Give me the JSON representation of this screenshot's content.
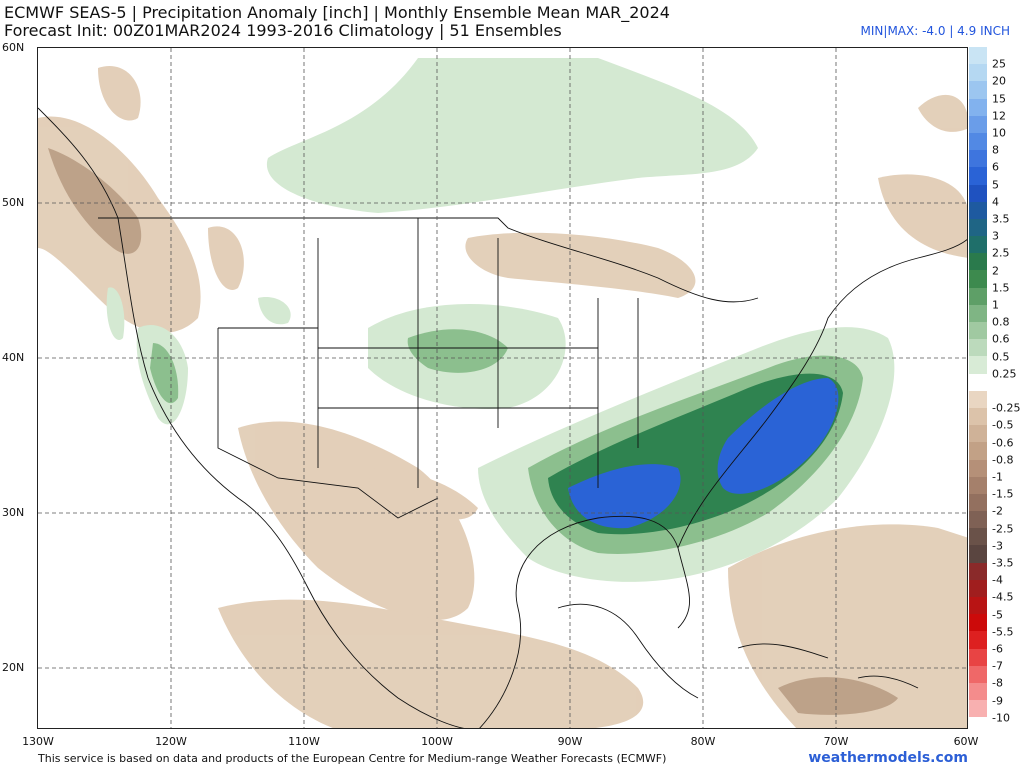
{
  "header": {
    "title_line1": "ECMWF SEAS-5 | Precipitation Anomaly [inch] | Monthly Ensemble Mean MAR_2024",
    "title_line2": "Forecast Init: 00Z01MAR2024     1993-2016 Climatology | 51 Ensembles",
    "minmax": "MIN|MAX: -4.0 | 4.9 INCH"
  },
  "axes": {
    "lat_labels": [
      "60N",
      "50N",
      "40N",
      "30N",
      "20N"
    ],
    "lon_labels": [
      "130W",
      "120W",
      "110W",
      "100W",
      "90W",
      "80W",
      "70W",
      "60W"
    ]
  },
  "colorbar": {
    "levels": [
      {
        "label": "25",
        "color": "#c9e4f4"
      },
      {
        "label": "20",
        "color": "#b5d8f2"
      },
      {
        "label": "15",
        "color": "#9cc6f0"
      },
      {
        "label": "12",
        "color": "#82b2ee"
      },
      {
        "label": "10",
        "color": "#6a9de9"
      },
      {
        "label": "8",
        "color": "#5289e4"
      },
      {
        "label": "6",
        "color": "#3e75de"
      },
      {
        "label": "5",
        "color": "#2a63d6"
      },
      {
        "label": "4",
        "color": "#1f52c0"
      },
      {
        "label": "3.5",
        "color": "#1e5aa0"
      },
      {
        "label": "3",
        "color": "#1f6585"
      },
      {
        "label": "2.5",
        "color": "#1f6f6a"
      },
      {
        "label": "2",
        "color": "#2a7a4c"
      },
      {
        "label": "1.5",
        "color": "#3d8a4e"
      },
      {
        "label": "1",
        "color": "#5e9f67"
      },
      {
        "label": "0.8",
        "color": "#7fb584"
      },
      {
        "label": "0.6",
        "color": "#a0c9a1"
      },
      {
        "label": "0.5",
        "color": "#bcdabc"
      },
      {
        "label": "0.25",
        "color": "#d8ebd6"
      },
      {
        "label": "",
        "color": "#ffffff"
      },
      {
        "label": "-0.25",
        "color": "#e9d6c2"
      },
      {
        "label": "-0.5",
        "color": "#dcc3aa"
      },
      {
        "label": "-0.6",
        "color": "#cfb298"
      },
      {
        "label": "-0.8",
        "color": "#c2a186"
      },
      {
        "label": "-1",
        "color": "#b59078"
      },
      {
        "label": "-1.5",
        "color": "#a5806b"
      },
      {
        "label": "-2",
        "color": "#93705f"
      },
      {
        "label": "-2.5",
        "color": "#7f6155"
      },
      {
        "label": "-3",
        "color": "#6a5249"
      },
      {
        "label": "-3.5",
        "color": "#5a4540"
      },
      {
        "label": "-4",
        "color": "#8a2a2a"
      },
      {
        "label": "-4.5",
        "color": "#a01e1e"
      },
      {
        "label": "-5",
        "color": "#b81414"
      },
      {
        "label": "-5.5",
        "color": "#cc0a0a"
      },
      {
        "label": "-6",
        "color": "#dd2020"
      },
      {
        "label": "-7",
        "color": "#e84444"
      },
      {
        "label": "-8",
        "color": "#ef6868"
      },
      {
        "label": "-9",
        "color": "#f48c8c"
      },
      {
        "label": "-10",
        "color": "#f8b0b0"
      }
    ]
  },
  "footer": {
    "credit": "This service is based on data and products of the European Centre for Medium-range Weather Forecasts (ECMWF)",
    "site": "weathermodels.com"
  }
}
